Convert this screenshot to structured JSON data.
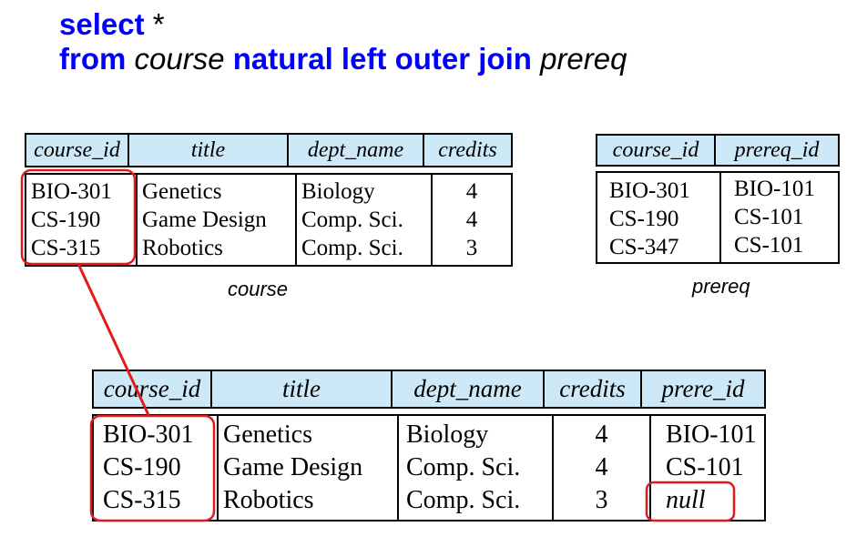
{
  "query": {
    "line1_kw": "select",
    "line1_star": " *",
    "line2_from": "from ",
    "line2_course": "course",
    "line2_join": " natural left outer join ",
    "line2_prereq": "prereq"
  },
  "course": {
    "caption": "course",
    "columns": [
      "course_id",
      "title",
      "dept_name",
      "credits"
    ],
    "rows": [
      [
        "BIO-301",
        "Genetics",
        "Biology",
        "4"
      ],
      [
        "CS-190",
        "Game Design",
        "Comp. Sci.",
        "4"
      ],
      [
        "CS-315",
        "Robotics",
        "Comp. Sci.",
        "3"
      ]
    ]
  },
  "prereq": {
    "caption": "prereq",
    "columns": [
      "course_id",
      "prereq_id"
    ],
    "rows": [
      [
        "BIO-301",
        "BIO-101"
      ],
      [
        "CS-190",
        "CS-101"
      ],
      [
        "CS-347",
        "CS-101"
      ]
    ]
  },
  "result": {
    "columns": [
      "course_id",
      "title",
      "dept_name",
      "credits",
      "prere_id"
    ],
    "rows": [
      [
        "BIO-301",
        "Genetics",
        "Biology",
        "4",
        "BIO-101"
      ],
      [
        "CS-190",
        "Game Design",
        "Comp. Sci.",
        "4",
        "CS-101"
      ],
      [
        "CS-315",
        "Robotics",
        "Comp. Sci.",
        "3",
        "null"
      ]
    ]
  },
  "colors": {
    "keyword": "#0000ff",
    "header_fill": "#cde9f7",
    "highlight": "#e31a1a"
  }
}
